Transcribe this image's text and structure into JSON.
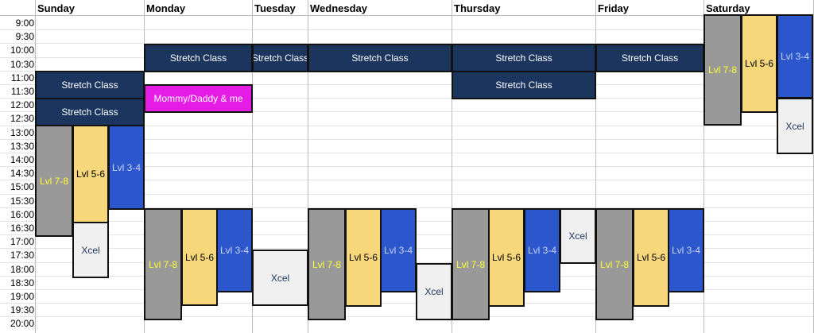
{
  "days": [
    "Sunday",
    "Monday",
    "Tuesday",
    "Wednesday",
    "Thursday",
    "Friday",
    "Saturday"
  ],
  "times": [
    "9:00",
    "9:30",
    "10:00",
    "10:30",
    "11:00",
    "11:30",
    "12:00",
    "12:30",
    "13:00",
    "13:30",
    "14:00",
    "14:30",
    "15:00",
    "15:30",
    "16:00",
    "16:30",
    "17:00",
    "17:30",
    "18:00",
    "18:30",
    "19:00",
    "19:30",
    "20:00"
  ],
  "colors": {
    "navy": "#1b355e",
    "magenta": "#e51ce5",
    "gray": "#999999",
    "yellow": "#f6d77b",
    "blue": "#2b56cc",
    "light": "#f0f0f0",
    "yellow_text": "#ffff33",
    "navy_text": "#1b355e",
    "white_text": "#ffffff",
    "blue_text": "#c9d3f2"
  },
  "labels": {
    "stretch": "Stretch Class",
    "mommy": "Mommy/Daddy & me",
    "lvl78": "Lvl 7-8",
    "lvl56": "Lvl 5-6",
    "lvl34": "Lvl 3-4",
    "xcel": "Xcel"
  }
}
